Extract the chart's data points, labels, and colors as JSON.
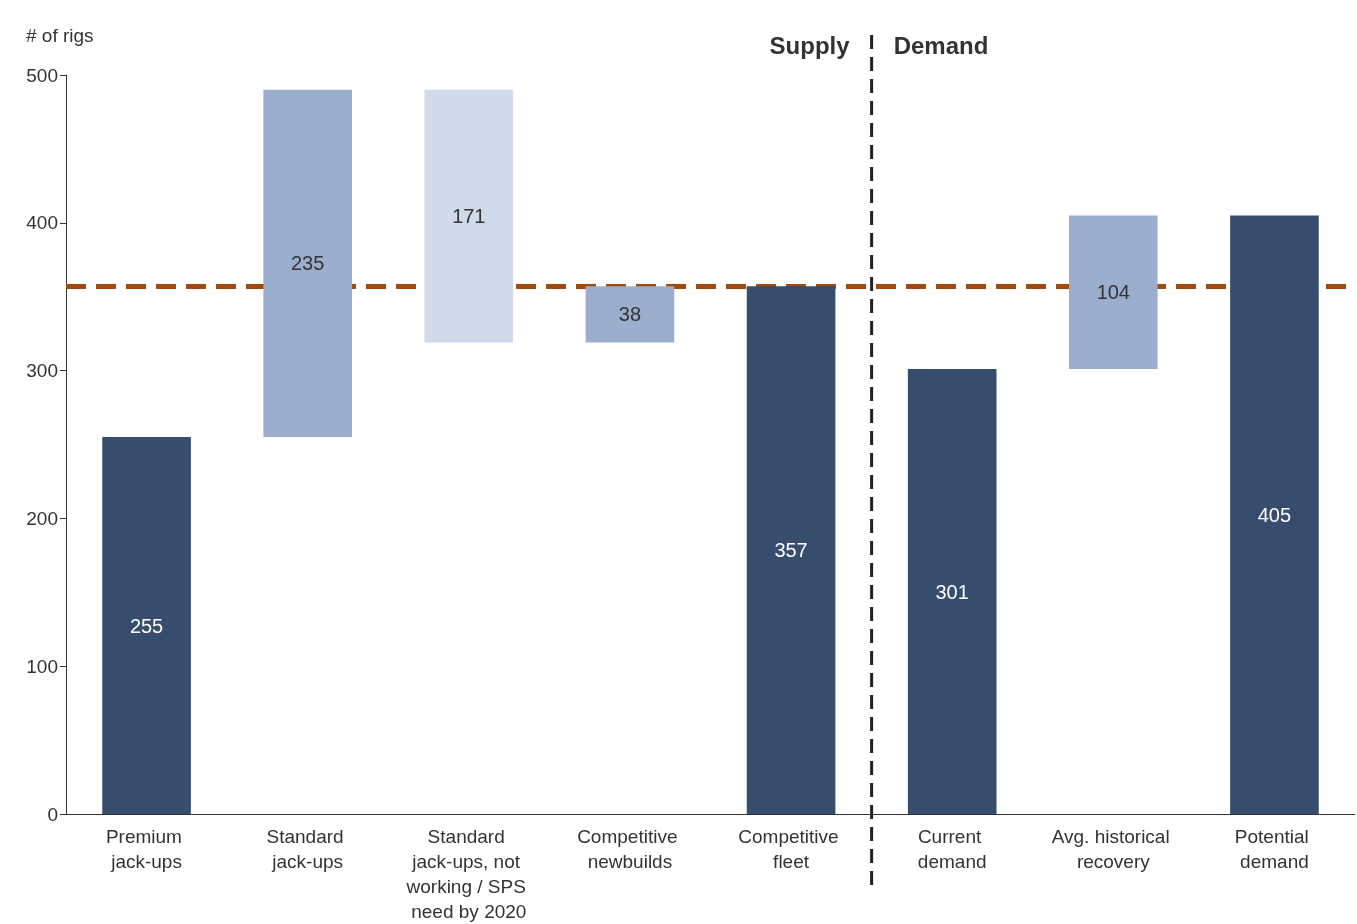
{
  "chart_data": {
    "type": "bar",
    "ylabel": "# of rigs",
    "categories": [
      "Premium jack-ups",
      "Standard jack-ups",
      "Standard jack-ups, not working / SPS need by 2020",
      "Competitive newbuilds",
      "Competitive fleet",
      "Current demand",
      "Avg. historical recovery",
      "Potential demand"
    ],
    "values": [
      255,
      235,
      171,
      38,
      357,
      301,
      104,
      405
    ],
    "base": [
      0,
      255,
      319,
      319,
      0,
      0,
      301,
      0
    ],
    "colors": [
      "#364d6e",
      "#9caecd",
      "#d0dae9",
      "#9caecd",
      "#364d6e",
      "#364d6e",
      "#9caecd",
      "#364d6e"
    ],
    "data_labels": true,
    "ylim": [
      0,
      500
    ],
    "yticks": [
      0,
      100,
      200,
      300,
      400,
      500
    ],
    "grid": false,
    "ref_lines": [
      {
        "axis": "y",
        "value": 357,
        "color": "#a24a0e",
        "line_style": "dashed"
      }
    ],
    "annotations": [
      "Supply",
      "Demand"
    ]
  }
}
